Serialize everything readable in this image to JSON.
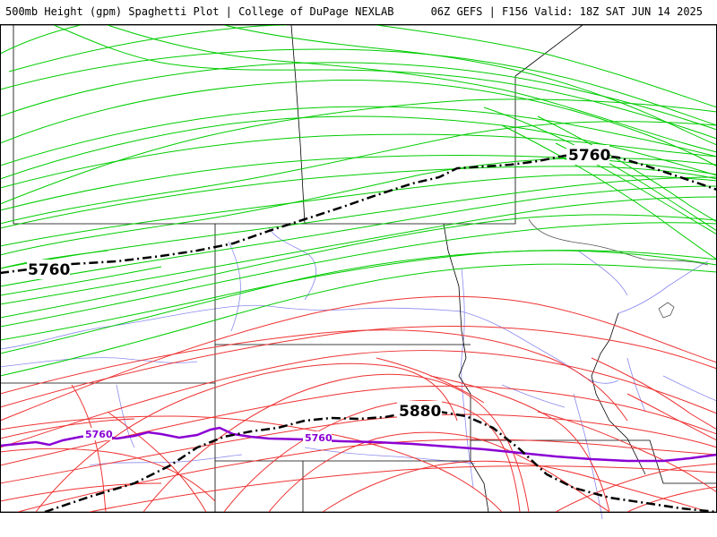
{
  "header": {
    "title_left": "500mb Height (gpm) Spaghetti Plot | College of DuPage NEXLAB",
    "title_right": "06Z GEFS | F156 Valid: 18Z SAT JUN 14 2025"
  },
  "contours": {
    "mean_5760_label_west": "5760",
    "mean_5760_label_east": "5760",
    "mean_5880_label": "5880",
    "purple_5760_label_west": "5760",
    "purple_5760_label_east": "5760"
  },
  "colors": {
    "green_members": "#00cc00",
    "red_members": "#ee3333",
    "mean_contour": "#000000",
    "purple_contour": "#8a00d4",
    "state_borders": "#000000",
    "rivers": "#8a8aee",
    "coastline": "#555555",
    "background": "#ffffff"
  }
}
